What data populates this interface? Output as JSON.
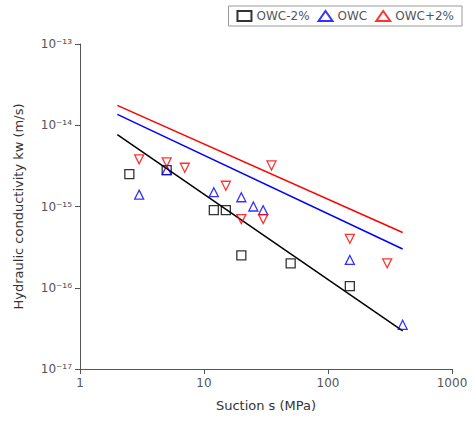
{
  "chart_data": {
    "type": "scatter",
    "xlabel": "Suction s (MPa)",
    "ylabel": "Hydraulic conductivity kw (m/s)",
    "log": true,
    "xlim": [
      1,
      1000
    ],
    "ylim": [
      1e-17,
      1e-13
    ],
    "xticks": [
      1,
      10,
      100,
      1000
    ],
    "yticks": [
      {
        "value": 1e-17,
        "label": "10⁻¹⁷"
      },
      {
        "value": 1e-16,
        "label": "10⁻¹⁶"
      },
      {
        "value": 1e-15,
        "label": "10⁻¹⁵"
      },
      {
        "value": 1e-14,
        "label": "10⁻¹⁴"
      },
      {
        "value": 1e-13,
        "label": "10⁻¹³"
      }
    ],
    "grid": false,
    "legend": "upper right",
    "series": [
      {
        "type": "line",
        "color": "black",
        "line_style": "solid",
        "x": [
          2.0,
          400
        ],
        "y": [
          7.6545e-15,
          2.9366e-17
        ]
      },
      {
        "type": "line",
        "color": "blue",
        "line_style": "solid",
        "x": [
          2.0,
          400
        ],
        "y": [
          1.3591e-14,
          2.9958e-16
        ]
      },
      {
        "type": "line",
        "color": "red",
        "line_style": "solid",
        "x": [
          2.0,
          400
        ],
        "y": [
          1.7591e-14,
          4.7929e-16
        ]
      },
      {
        "type": "scatter",
        "name": "OWC-2%",
        "color": "black",
        "marker": "square",
        "x": [
          2.5,
          5,
          12,
          15,
          20,
          50,
          150
        ],
        "y": [
          2.5e-15,
          2.8e-15,
          9e-16,
          9e-16,
          2.5e-16,
          2e-16,
          1.05e-16
        ]
      },
      {
        "type": "scatter",
        "name": "OWC",
        "color": "blue",
        "marker": "triangle-up",
        "x": [
          3,
          5,
          12,
          20,
          25,
          30,
          150,
          400
        ],
        "y": [
          1.4e-15,
          2.8e-15,
          1.5e-15,
          1.3e-15,
          1e-15,
          9e-16,
          2.2e-16,
          3.5e-17
        ]
      },
      {
        "type": "scatter",
        "name": "OWC+2%",
        "color": "red",
        "marker": "triangle-down",
        "x": [
          3,
          5,
          7,
          15,
          20,
          30,
          35,
          150,
          300
        ],
        "y": [
          3.8e-15,
          3.5e-15,
          3e-15,
          1.8e-15,
          7e-16,
          7e-16,
          3.2e-15,
          4e-16,
          2e-16
        ]
      }
    ]
  }
}
